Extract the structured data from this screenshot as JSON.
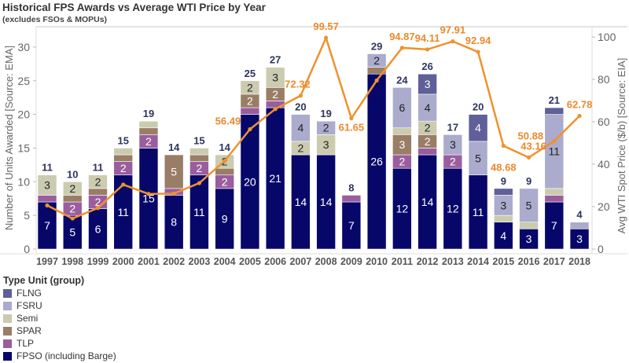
{
  "title": "Historical FPS Awards vs Average WTI Price by Year",
  "subtitle": "(excludes FSOs & MOPUs)",
  "chart_data": {
    "type": "bar",
    "subtype": "stacked bar with line on secondary axis",
    "categories": [
      "1997",
      "1998",
      "1999",
      "2000",
      "2001",
      "2002",
      "2003",
      "2004",
      "2005",
      "2006",
      "2007",
      "2008",
      "2009",
      "2010",
      "2011",
      "2012",
      "2013",
      "2014",
      "2015",
      "2016",
      "2017",
      "2018"
    ],
    "ylabel": "Number of Units Awarded [Source: EMA]",
    "ylim": [
      0,
      32
    ],
    "yticks": [
      0,
      5,
      10,
      15,
      20,
      25,
      30
    ],
    "y2label": "Avg WTI Spot Price ($/b) [Source: EIA]",
    "y2lim": [
      0,
      100
    ],
    "y2ticks": [
      0,
      20,
      40,
      60,
      80,
      100
    ],
    "grid": false,
    "legend_title": "Type Unit (group)",
    "legend_placement": "bottom-left",
    "series": [
      {
        "name": "FPSO (including Barge)",
        "color": "#07076a",
        "values": [
          7,
          5,
          6,
          11,
          15,
          8,
          11,
          9,
          20,
          21,
          14,
          14,
          7,
          26,
          12,
          14,
          12,
          11,
          4,
          3,
          7,
          3
        ]
      },
      {
        "name": "TLP",
        "color": "#9a5e9e",
        "values": [
          1,
          2,
          2,
          2,
          2,
          1,
          2,
          2,
          1,
          1,
          0,
          0,
          1,
          0,
          2,
          1,
          2,
          0,
          0,
          0,
          1,
          0
        ]
      },
      {
        "name": "SPAR",
        "color": "#9a7d66",
        "values": [
          0,
          1,
          1,
          1,
          1,
          5,
          1,
          1,
          2,
          2,
          0,
          0,
          0,
          1,
          3,
          2,
          0,
          0,
          0,
          0,
          0,
          0
        ]
      },
      {
        "name": "Semi",
        "color": "#cbcbb0",
        "values": [
          3,
          2,
          2,
          1,
          1,
          0,
          1,
          2,
          2,
          3,
          2,
          3,
          0,
          0,
          1,
          2,
          0,
          0,
          1,
          1,
          1,
          0
        ]
      },
      {
        "name": "FSRU",
        "color": "#ababcd",
        "values": [
          0,
          0,
          0,
          0,
          0,
          0,
          0,
          0,
          0,
          0,
          4,
          2,
          0,
          2,
          6,
          4,
          3,
          5,
          3,
          5,
          11,
          1
        ]
      },
      {
        "name": "FLNG",
        "color": "#5f5f99",
        "values": [
          0,
          0,
          0,
          0,
          0,
          0,
          0,
          0,
          0,
          0,
          0,
          0,
          0,
          0,
          0,
          3,
          0,
          4,
          1,
          0,
          1,
          0
        ]
      }
    ],
    "totals": [
      11,
      10,
      11,
      15,
      19,
      14,
      15,
      14,
      25,
      27,
      20,
      19,
      8,
      29,
      24,
      26,
      17,
      20,
      9,
      9,
      21,
      4
    ],
    "line": {
      "color": "#f0912e",
      "values": [
        20.61,
        14.42,
        19.35,
        30.38,
        25.98,
        26.18,
        31.08,
        41.51,
        56.49,
        66.02,
        72.32,
        99.57,
        61.65,
        79.48,
        94.87,
        94.11,
        97.91,
        92.94,
        48.68,
        43.16,
        50.88,
        62.78
      ],
      "labels": [
        "",
        "",
        "",
        "",
        "",
        "",
        "",
        "",
        "56.49",
        "",
        "72.32",
        "99.57",
        "61.65",
        "",
        "94.87",
        "94.11",
        "97.91",
        "92.94",
        "48.68",
        "43.16",
        "50.88",
        "62.78"
      ]
    }
  }
}
